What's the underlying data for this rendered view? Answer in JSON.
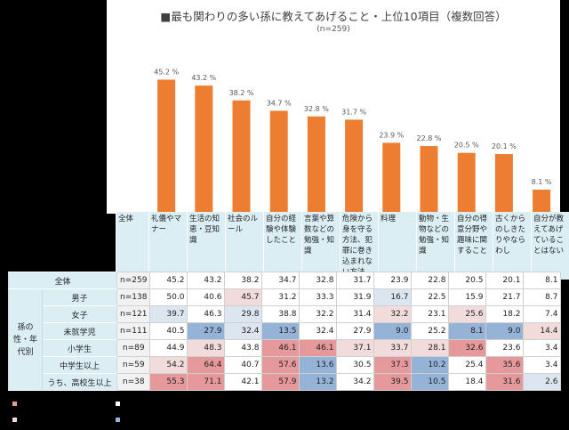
{
  "chart_data": {
    "type": "bar",
    "title": "■最も関わりの多い孫に教えてあげること・上位10項目（複数回答）",
    "subtitle": "(n=259)",
    "categories": [
      "礼儀やマナー",
      "生活の知恵・豆知識",
      "社会のルール",
      "自分の経験や体験したこと",
      "言葉や算数などの勉強・知識",
      "危険から身を守る方法、犯罪に巻き込まれない方法",
      "料理",
      "動物・生物などの勉強・知識",
      "自分の得意分野や趣味に関すること",
      "古くからのしきたりやならわし",
      "自分が教えてあげていることはない"
    ],
    "values": [
      45.2,
      43.2,
      38.2,
      34.7,
      32.8,
      31.7,
      23.9,
      22.8,
      20.5,
      20.1,
      8.1
    ],
    "value_labels": [
      "45.2 %",
      "43.2 %",
      "38.2 %",
      "34.7 %",
      "32.8 %",
      "31.7 %",
      "23.9 %",
      "22.8 %",
      "20.5 %",
      "20.1 %",
      "8.1 %"
    ],
    "ylim": [
      0,
      50
    ],
    "bar_color": "#ed7d31",
    "grid": false
  },
  "table": {
    "header_first": "全体",
    "group_label": "孫の性・年代別",
    "colors": {
      "hi": "#e6999a",
      "shi": "#f2dcdb",
      "lo": "#95b3d7",
      "slo": "#dce6f1"
    },
    "rows": [
      {
        "label": "全体",
        "n": "n=259",
        "values": [
          "45.2",
          "43.2",
          "38.2",
          "34.7",
          "32.8",
          "31.7",
          "23.9",
          "22.8",
          "20.5",
          "20.1",
          "8.1"
        ],
        "marks": [
          "",
          "",
          "",
          "",
          "",
          "",
          "",
          "",
          "",
          "",
          ""
        ]
      },
      {
        "label": "男子",
        "n": "n=138",
        "values": [
          "50.0",
          "40.6",
          "45.7",
          "31.2",
          "33.3",
          "31.9",
          "16.7",
          "22.5",
          "15.9",
          "21.7",
          "8.7"
        ],
        "marks": [
          "",
          "",
          "shi",
          "",
          "",
          "",
          "slo",
          "",
          "",
          "",
          ""
        ]
      },
      {
        "label": "女子",
        "n": "n=121",
        "values": [
          "39.7",
          "46.3",
          "29.8",
          "38.8",
          "32.2",
          "31.4",
          "32.2",
          "23.1",
          "25.6",
          "18.2",
          "7.4"
        ],
        "marks": [
          "slo",
          "",
          "slo",
          "",
          "",
          "",
          "shi",
          "",
          "shi",
          "",
          ""
        ]
      },
      {
        "label": "未就学児",
        "n": "n=111",
        "values": [
          "40.5",
          "27.9",
          "32.4",
          "13.5",
          "32.4",
          "27.9",
          "9.0",
          "25.2",
          "8.1",
          "9.0",
          "14.4"
        ],
        "marks": [
          "",
          "lo",
          "slo",
          "lo",
          "",
          "",
          "lo",
          "",
          "lo",
          "lo",
          "shi"
        ]
      },
      {
        "label": "小学生",
        "n": "n=89",
        "values": [
          "44.9",
          "48.3",
          "43.8",
          "46.1",
          "46.1",
          "37.1",
          "33.7",
          "28.1",
          "32.6",
          "23.6",
          "3.4"
        ],
        "marks": [
          "",
          "shi",
          "",
          "hi",
          "hi",
          "shi",
          "shi",
          "shi",
          "hi",
          "",
          ""
        ]
      },
      {
        "label": "中学生以上",
        "n": "n=59",
        "values": [
          "54.2",
          "64.4",
          "40.7",
          "57.6",
          "13.6",
          "30.5",
          "37.3",
          "10.2",
          "25.4",
          "35.6",
          "3.4"
        ],
        "marks": [
          "shi",
          "hi",
          "",
          "hi",
          "lo",
          "",
          "hi",
          "lo",
          "",
          "hi",
          ""
        ]
      },
      {
        "label": "うち、高校生以上",
        "n": "n=38",
        "values": [
          "55.3",
          "71.1",
          "42.1",
          "57.9",
          "13.2",
          "34.2",
          "39.5",
          "10.5",
          "18.4",
          "31.6",
          "2.6"
        ],
        "marks": [
          "hi",
          "hi",
          "",
          "hi",
          "lo",
          "",
          "hi",
          "lo",
          "",
          "hi",
          "slo"
        ]
      }
    ]
  }
}
